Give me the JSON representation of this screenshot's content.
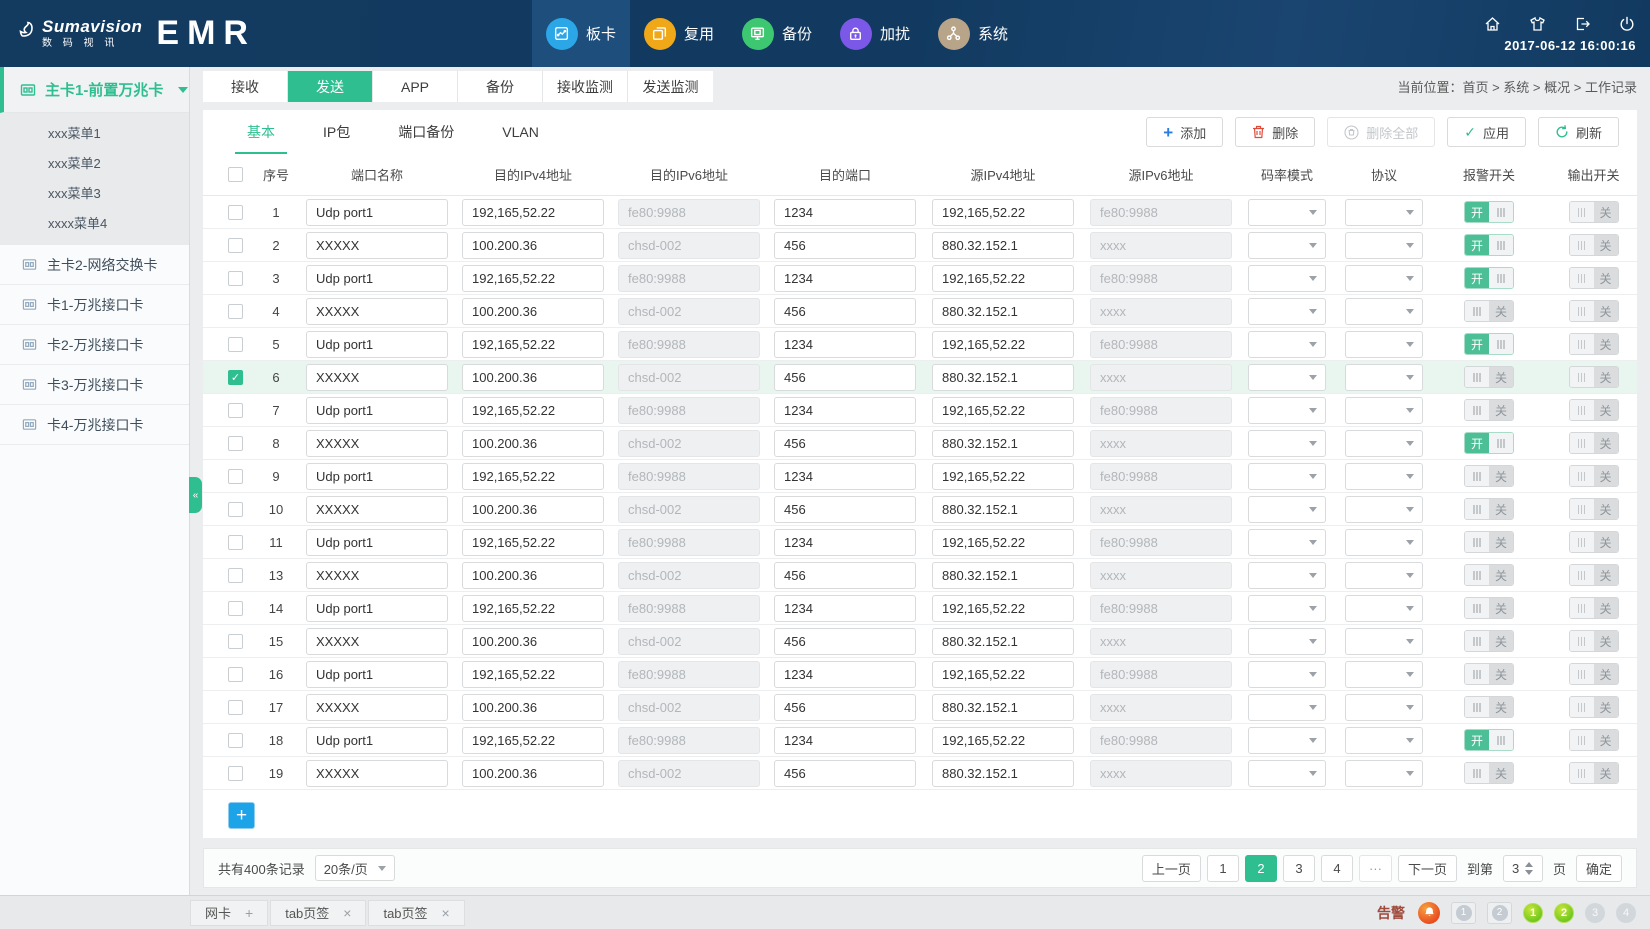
{
  "colors": {
    "accent": "#2FBE8F",
    "header_bg": "#14395E",
    "add_blue": "#1CA3E8"
  },
  "header": {
    "brand": {
      "name": "Sumavision",
      "cn": "数 码 视 讯",
      "product": "EMR"
    },
    "nav": [
      {
        "label": "板卡",
        "icon": "board-icon",
        "color": "#2BA7E8",
        "active": true
      },
      {
        "label": "复用",
        "icon": "multiplex-icon",
        "color": "#F0A818",
        "active": false
      },
      {
        "label": "备份",
        "icon": "backup-icon",
        "color": "#3DC770",
        "active": false
      },
      {
        "label": "加扰",
        "icon": "scramble-icon",
        "color": "#7C58E8",
        "active": false
      },
      {
        "label": "系统",
        "icon": "system-icon",
        "color": "#B7A489",
        "active": false
      }
    ],
    "icons": [
      "home",
      "skin",
      "logout",
      "power"
    ],
    "datetime": "2017-06-12 16:00:16"
  },
  "sidebar": {
    "active_card": {
      "label": "主卡1-前置万兆卡"
    },
    "submenu": [
      "xxx菜单1",
      "xxx菜单2",
      "xxx菜单3",
      "xxxx菜单4"
    ],
    "cards": [
      "主卡2-网络交换卡",
      "卡1-万兆接口卡",
      "卡2-万兆接口卡",
      "卡3-万兆接口卡",
      "卡4-万兆接口卡"
    ],
    "collapse_glyph": "«"
  },
  "tabs": {
    "items": [
      "接收",
      "发送",
      "APP",
      "备份",
      "接收监测",
      "发送监测"
    ],
    "active": "发送"
  },
  "breadcrumb": {
    "prefix": "当前位置：",
    "items": [
      "首页",
      "系统",
      "概况",
      "工作记录"
    ],
    "separator": " > "
  },
  "subtabs": {
    "items": [
      "基本",
      "IP包",
      "端口备份",
      "VLAN"
    ],
    "active": "基本"
  },
  "toolbar": {
    "add": "添加",
    "delete": "删除",
    "delete_all": "删除全部",
    "apply": "应用",
    "refresh": "刷新"
  },
  "table": {
    "columns": [
      "序号",
      "端口名称",
      "目的IPv4地址",
      "目的IPv6地址",
      "目的端口",
      "源IPv4地址",
      "源IPv6地址",
      "码率模式",
      "协议",
      "报警开关",
      "输出开关"
    ],
    "switch_on_label": "开",
    "switch_off_label": "关",
    "rows": [
      {
        "no": "1",
        "name": "Udp port1",
        "dip4": "192,165,52.22",
        "dip6": "fe80:9988",
        "dport": "1234",
        "sip4": "192,165,52.22",
        "sip6": "fe80:9988",
        "alarm": true,
        "out": false,
        "checked": false
      },
      {
        "no": "2",
        "name": "XXXXX",
        "dip4": "100.200.36",
        "dip6": "chsd-002",
        "dport": "456",
        "sip4": "880.32.152.1",
        "sip6": "xxxx",
        "alarm": true,
        "out": false,
        "checked": false
      },
      {
        "no": "3",
        "name": "Udp port1",
        "dip4": "192,165,52.22",
        "dip6": "fe80:9988",
        "dport": "1234",
        "sip4": "192,165,52.22",
        "sip6": "fe80:9988",
        "alarm": true,
        "out": false,
        "checked": false
      },
      {
        "no": "4",
        "name": "XXXXX",
        "dip4": "100.200.36",
        "dip6": "chsd-002",
        "dport": "456",
        "sip4": "880.32.152.1",
        "sip6": "xxxx",
        "alarm": false,
        "out": false,
        "checked": false
      },
      {
        "no": "5",
        "name": "Udp port1",
        "dip4": "192,165,52.22",
        "dip6": "fe80:9988",
        "dport": "1234",
        "sip4": "192,165,52.22",
        "sip6": "fe80:9988",
        "alarm": true,
        "out": false,
        "checked": false
      },
      {
        "no": "6",
        "name": "XXXXX",
        "dip4": "100.200.36",
        "dip6": "chsd-002",
        "dport": "456",
        "sip4": "880.32.152.1",
        "sip6": "xxxx",
        "alarm": false,
        "out": false,
        "checked": true
      },
      {
        "no": "7",
        "name": "Udp port1",
        "dip4": "192,165,52.22",
        "dip6": "fe80:9988",
        "dport": "1234",
        "sip4": "192,165,52.22",
        "sip6": "fe80:9988",
        "alarm": false,
        "out": false,
        "checked": false
      },
      {
        "no": "8",
        "name": "XXXXX",
        "dip4": "100.200.36",
        "dip6": "chsd-002",
        "dport": "456",
        "sip4": "880.32.152.1",
        "sip6": "xxxx",
        "alarm": true,
        "out": false,
        "checked": false
      },
      {
        "no": "9",
        "name": "Udp port1",
        "dip4": "192,165,52.22",
        "dip6": "fe80:9988",
        "dport": "1234",
        "sip4": "192,165,52.22",
        "sip6": "fe80:9988",
        "alarm": false,
        "out": false,
        "checked": false
      },
      {
        "no": "10",
        "name": "XXXXX",
        "dip4": "100.200.36",
        "dip6": "chsd-002",
        "dport": "456",
        "sip4": "880.32.152.1",
        "sip6": "xxxx",
        "alarm": false,
        "out": false,
        "checked": false
      },
      {
        "no": "11",
        "name": "Udp port1",
        "dip4": "192,165,52.22",
        "dip6": "fe80:9988",
        "dport": "1234",
        "sip4": "192,165,52.22",
        "sip6": "fe80:9988",
        "alarm": false,
        "out": false,
        "checked": false
      },
      {
        "no": "13",
        "name": "XXXXX",
        "dip4": "100.200.36",
        "dip6": "chsd-002",
        "dport": "456",
        "sip4": "880.32.152.1",
        "sip6": "xxxx",
        "alarm": false,
        "out": false,
        "checked": false
      },
      {
        "no": "14",
        "name": "Udp port1",
        "dip4": "192,165,52.22",
        "dip6": "fe80:9988",
        "dport": "1234",
        "sip4": "192,165,52.22",
        "sip6": "fe80:9988",
        "alarm": false,
        "out": false,
        "checked": false
      },
      {
        "no": "15",
        "name": "XXXXX",
        "dip4": "100.200.36",
        "dip6": "chsd-002",
        "dport": "456",
        "sip4": "880.32.152.1",
        "sip6": "xxxx",
        "alarm": false,
        "out": false,
        "checked": false
      },
      {
        "no": "16",
        "name": "Udp port1",
        "dip4": "192,165,52.22",
        "dip6": "fe80:9988",
        "dport": "1234",
        "sip4": "192,165,52.22",
        "sip6": "fe80:9988",
        "alarm": false,
        "out": false,
        "checked": false
      },
      {
        "no": "17",
        "name": "XXXXX",
        "dip4": "100.200.36",
        "dip6": "chsd-002",
        "dport": "456",
        "sip4": "880.32.152.1",
        "sip6": "xxxx",
        "alarm": false,
        "out": false,
        "checked": false
      },
      {
        "no": "18",
        "name": "Udp port1",
        "dip4": "192,165,52.22",
        "dip6": "fe80:9988",
        "dport": "1234",
        "sip4": "192,165,52.22",
        "sip6": "fe80:9988",
        "alarm": true,
        "out": false,
        "checked": false
      },
      {
        "no": "19",
        "name": "XXXXX",
        "dip4": "100.200.36",
        "dip6": "chsd-002",
        "dport": "456",
        "sip4": "880.32.152.1",
        "sip6": "xxxx",
        "alarm": false,
        "out": false,
        "checked": false
      }
    ]
  },
  "pagination": {
    "total_label": "共有400条记录",
    "per_page": "20条/页",
    "prev": "上一页",
    "next": "下一页",
    "pages": [
      "1",
      "2",
      "3",
      "4"
    ],
    "active_page": "2",
    "ellipsis": "···",
    "goto_prefix": "到第",
    "goto_value": "3",
    "goto_suffix": "页",
    "confirm": "确定"
  },
  "footer": {
    "tabs": [
      {
        "label": "网卡",
        "action": "plus",
        "glyph": "+"
      },
      {
        "label": "tab页签",
        "action": "close",
        "glyph": "×"
      },
      {
        "label": "tab页签",
        "action": "close",
        "glyph": "×"
      }
    ],
    "alarm_label": "告警",
    "badges": [
      {
        "kind": "alarm",
        "value": ""
      },
      {
        "kind": "boxed",
        "value": "1"
      },
      {
        "kind": "boxed",
        "value": "2"
      },
      {
        "kind": "green",
        "value": "1"
      },
      {
        "kind": "green",
        "value": "2"
      },
      {
        "kind": "muted",
        "value": "3"
      },
      {
        "kind": "muted",
        "value": "4"
      }
    ]
  }
}
